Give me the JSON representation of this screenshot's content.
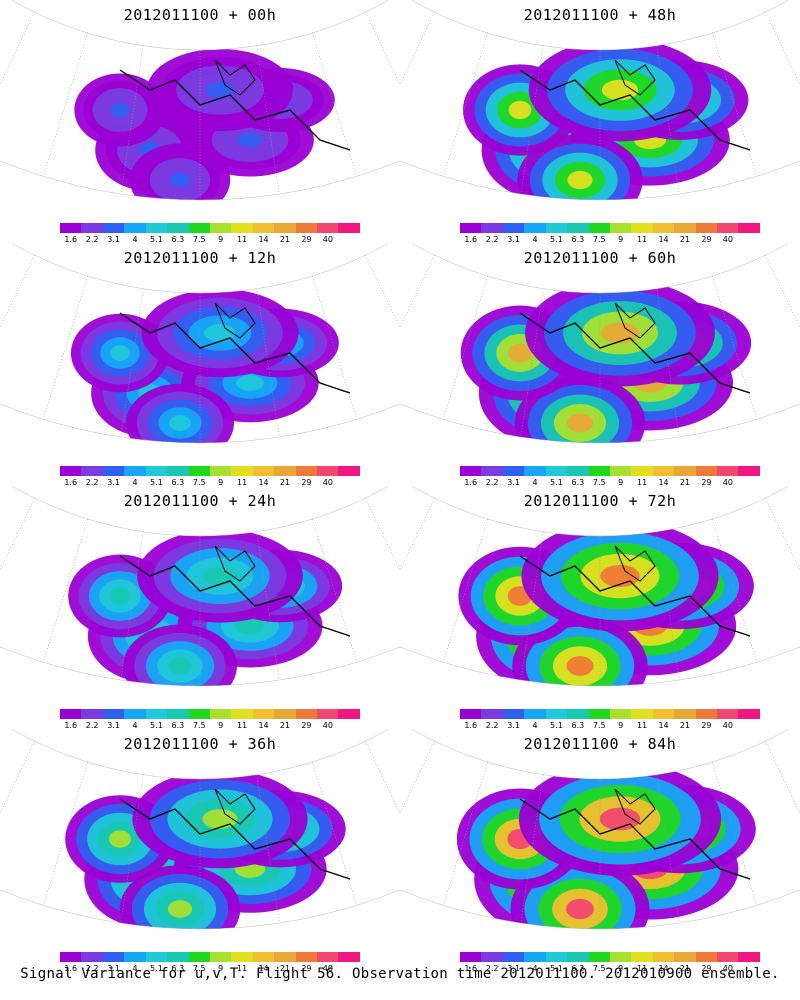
{
  "panels": [
    {
      "title": "2012011100 + 00h",
      "level": 0.15
    },
    {
      "title": "2012011100 + 48h",
      "level": 0.65
    },
    {
      "title": "2012011100 + 12h",
      "level": 0.3
    },
    {
      "title": "2012011100 + 60h",
      "level": 0.75
    },
    {
      "title": "2012011100 + 24h",
      "level": 0.42
    },
    {
      "title": "2012011100 + 72h",
      "level": 0.85
    },
    {
      "title": "2012011100 + 36h",
      "level": 0.55
    },
    {
      "title": "2012011100 + 84h",
      "level": 0.92
    }
  ],
  "colorbar": {
    "colors": [
      "#9a00d4",
      "#7a3ce0",
      "#3060f0",
      "#17a8f5",
      "#20c8d8",
      "#18c8b0",
      "#20d820",
      "#a8e030",
      "#e0e020",
      "#f0c030",
      "#e8a838",
      "#f07838",
      "#f04870",
      "#f01880"
    ],
    "ticks": [
      "1.6",
      "2.2",
      "3.1",
      "4",
      "5.1",
      "6.3",
      "7.5",
      "9",
      "11",
      "14",
      "21",
      "29",
      "40"
    ]
  },
  "footer": "Signal Variance for u,v,T. Flight 56. Observation time 2012011100. 2012010900 ensemble."
}
